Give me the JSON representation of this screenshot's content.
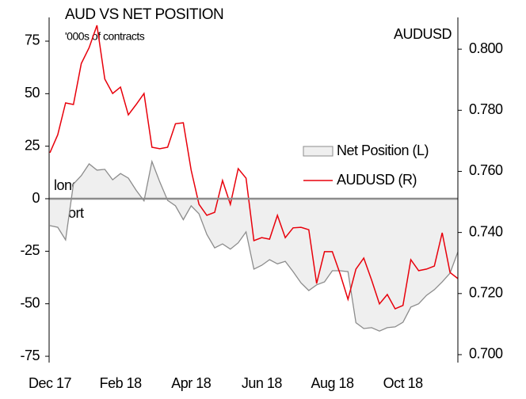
{
  "chart_data": {
    "type": "line",
    "title": "AUD VS NET POSITION",
    "subtitle": "'000s of contracts",
    "y2_label": "AUDUSD",
    "annotations": [
      "long",
      "short"
    ],
    "categories": [
      "Dec 17",
      null,
      null,
      null,
      null,
      null,
      null,
      null,
      null,
      "Feb 18",
      null,
      null,
      null,
      null,
      null,
      null,
      null,
      null,
      "Apr 18",
      null,
      null,
      null,
      null,
      null,
      null,
      null,
      null,
      "Jun 18",
      null,
      null,
      null,
      null,
      null,
      null,
      null,
      null,
      "Aug 18",
      null,
      null,
      null,
      null,
      null,
      null,
      null,
      null,
      "Oct 18",
      null,
      null,
      null,
      null,
      null,
      null,
      null
    ],
    "series": [
      {
        "name": "Net Position (L)",
        "type": "area",
        "color": "#8c8c8c",
        "fill": "#efefef",
        "axis": "y",
        "values": [
          -12.8,
          -13.6,
          -19.6,
          7,
          11,
          16.6,
          13.6,
          14,
          9,
          12,
          9.8,
          4,
          -1,
          17.7,
          8,
          -0.8,
          -3.4,
          -10,
          -3.4,
          -7.2,
          -17,
          -23.4,
          -21.5,
          -24,
          -21,
          -15.8,
          -33.5,
          -31.7,
          -29,
          -31,
          -29.8,
          -34.7,
          -40,
          -43.7,
          -41,
          -39.6,
          -34.3,
          -34.3,
          -34.7,
          -59,
          -61.8,
          -61.4,
          -63,
          -61.4,
          -61,
          -58.8,
          -51.6,
          -50,
          -46,
          -43.3,
          -39.6,
          -35.4,
          -25.3
        ]
      },
      {
        "name": "AUDUSD (R)",
        "type": "line",
        "color": "#e8000b",
        "axis": "y2",
        "values": [
          0.7661,
          0.772,
          0.7824,
          0.7819,
          0.7953,
          0.8005,
          0.8078,
          0.7902,
          0.7855,
          0.7876,
          0.7785,
          0.7819,
          0.7855,
          0.7679,
          0.7674,
          0.7679,
          0.7756,
          0.7759,
          0.7604,
          0.7492,
          0.7456,
          0.7466,
          0.757,
          0.7492,
          0.7609,
          0.7578,
          0.7373,
          0.7383,
          0.7378,
          0.7456,
          0.7383,
          0.7415,
          0.7417,
          0.7409,
          0.7233,
          0.7337,
          0.7337,
          0.7264,
          0.7181,
          0.728,
          0.7316,
          0.7244,
          0.7166,
          0.7197,
          0.715,
          0.7161,
          0.7311,
          0.7275,
          0.728,
          0.729,
          0.7399,
          0.7269,
          0.7249
        ]
      }
    ],
    "ylim": [
      -78,
      86.3
    ],
    "yticks": [
      -75,
      -50,
      -25,
      0,
      25,
      50,
      75
    ],
    "y2lim": [
      0.6974,
      0.8104
    ],
    "y2ticks": [
      {
        "value": 0.7,
        "label": "0.700"
      },
      {
        "value": 0.72,
        "label": "0.720"
      },
      {
        "value": 0.74,
        "label": "0.740"
      },
      {
        "value": 0.76,
        "label": "0.760"
      },
      {
        "value": 0.78,
        "label": "0.780"
      },
      {
        "value": 0.8,
        "label": "0.800"
      }
    ],
    "legend": "center right",
    "grid": false
  }
}
